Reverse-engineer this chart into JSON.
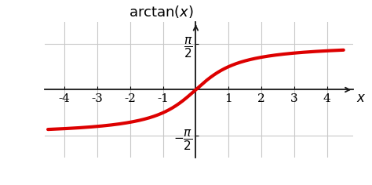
{
  "xlabel": "$x$",
  "xlim": [
    -4.6,
    4.8
  ],
  "ylim": [
    -2.3,
    2.3
  ],
  "xticks": [
    -4,
    -3,
    -2,
    -1,
    1,
    2,
    3,
    4
  ],
  "ytick_pi2": 1.5707963267948966,
  "line_color": "#dd0000",
  "line_width": 3.0,
  "background_color": "#ffffff",
  "grid_color": "#c8c8c8",
  "axis_color": "#1a1a1a",
  "title_text": "$\\mathrm{arctan}(x)$",
  "title_fontsize": 13,
  "tick_fontsize": 11,
  "xlabel_fontsize": 12
}
